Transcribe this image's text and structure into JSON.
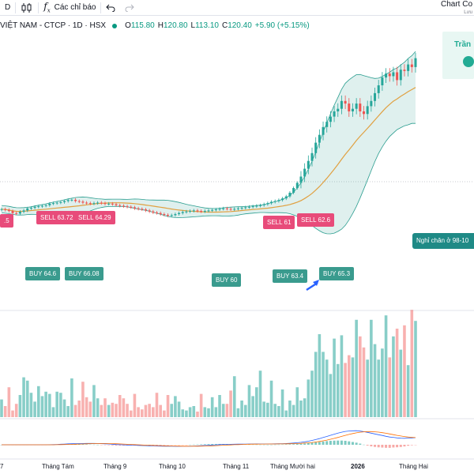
{
  "toolbar": {
    "timeframe_fragment": "D",
    "candles_icon": "candles-icon",
    "indicators_label": "Các chỉ báo",
    "undo_icon": "undo-icon",
    "redo_icon": "redo-icon"
  },
  "header_right": {
    "title": "Chart Co",
    "subtitle": "Lưu"
  },
  "legend": {
    "title": "VIỆT NAM - CTCP · 1D · HSX",
    "open_label": "O",
    "open": "115.80",
    "high_label": "H",
    "high": "120.80",
    "low_label": "L",
    "low": "113.10",
    "close_label": "C",
    "close": "120.40",
    "change": "+5.90 (+5.15%)"
  },
  "promo": {
    "text": "Trần"
  },
  "signals": [
    {
      "type": "sell",
      "text": "SELL 63.72"
    },
    {
      "type": "sell",
      "text": "SELL 64.29"
    },
    {
      "type": "sell",
      "text": "SELL 61"
    },
    {
      "type": "sell",
      "text": "SELL 62.6"
    },
    {
      "type": "sell",
      "text": ".5"
    },
    {
      "type": "buy",
      "text": "BUY 64.6"
    },
    {
      "type": "buy",
      "text": "BUY 66.08"
    },
    {
      "type": "buy",
      "text": "BUY 60"
    },
    {
      "type": "buy",
      "text": "BUY 63.4"
    },
    {
      "type": "buy",
      "text": "BUY 65.3"
    }
  ],
  "note": "Nghỉ chân ở 98-10",
  "x_axis": [
    "7",
    "Tháng Tám",
    "Tháng 9",
    "Tháng 10",
    "Tháng 11",
    "Tháng Mười hai",
    "2026",
    "Tháng Hai"
  ],
  "colors": {
    "up": "#26a69a",
    "down": "#ef5350",
    "sell": "#e84b7a",
    "buy": "#3a9b8e",
    "band": "#2a9d8f",
    "ma": "#e0a040"
  },
  "series": {
    "close": [
      62.5,
      62.2,
      61.8,
      61.0,
      60.8,
      61.5,
      62.0,
      62.8,
      63.0,
      63.4,
      63.6,
      63.8,
      64.0,
      64.6,
      64.8,
      65.0,
      65.2,
      65.6,
      66.0,
      66.1,
      65.6,
      65.4,
      65.0,
      64.8,
      64.6,
      64.8,
      65.0,
      64.8,
      64.5,
      64.6,
      64.4,
      64.0,
      63.8,
      63.6,
      63.4,
      63.2,
      62.8,
      62.6,
      62.4,
      62.0,
      61.6,
      61.2,
      61.0,
      60.6,
      60.3,
      60.0,
      60.2,
      60.6,
      61.0,
      61.4,
      61.6,
      61.8,
      62.0,
      61.8,
      61.6,
      61.8,
      62.0,
      62.2,
      62.4,
      62.6,
      62.8,
      62.6,
      62.4,
      62.6,
      62.8,
      63.0,
      63.2,
      63.4,
      63.6,
      63.8,
      64.0,
      64.4,
      64.8,
      65.3,
      65.6,
      66.0,
      66.6,
      67.4,
      68.8,
      70.6,
      72.6,
      75.0,
      78.0,
      81.0,
      84.0,
      88.0,
      91.0,
      94.0,
      96.0,
      98.0,
      100.0,
      101.0,
      104.0,
      103.0,
      100.0,
      101.0,
      103.0,
      100.0,
      99.0,
      102.0,
      104.0,
      107.0,
      110.0,
      113.0,
      114.5,
      113.5,
      115.0,
      112.0,
      116.0,
      115.5,
      118.0,
      117.0,
      120.4
    ],
    "volume": [
      0.16,
      0.1,
      0.27,
      0.06,
      0.12,
      0.2,
      0.36,
      0.33,
      0.22,
      0.14,
      0.28,
      0.19,
      0.23,
      0.21,
      0.09,
      0.23,
      0.22,
      0.16,
      0.1,
      0.35,
      0.11,
      0.15,
      0.32,
      0.18,
      0.14,
      0.29,
      0.17,
      0.11,
      0.17,
      0.11,
      0.13,
      0.12,
      0.2,
      0.17,
      0.12,
      0.06,
      0.21,
      0.09,
      0.07,
      0.11,
      0.12,
      0.09,
      0.22,
      0.11,
      0.06,
      0.2,
      0.12,
      0.19,
      0.14,
      0.07,
      0.06,
      0.09,
      0.1,
      0.05,
      0.21,
      0.09,
      0.08,
      0.18,
      0.09,
      0.2,
      0.12,
      0.12,
      0.24,
      0.37,
      0.08,
      0.15,
      0.11,
      0.29,
      0.19,
      0.27,
      0.42,
      0.14,
      0.13,
      0.33,
      0.12,
      0.1,
      0.25,
      0.06,
      0.15,
      0.11,
      0.27,
      0.15,
      0.17,
      0.34,
      0.42,
      0.59,
      0.75,
      0.59,
      0.52,
      0.39,
      0.71,
      0.48,
      0.74,
      0.49,
      0.56,
      0.54,
      0.88,
      0.73,
      0.63,
      0.52,
      0.88,
      0.66,
      0.52,
      0.62,
      0.92,
      0.54,
      0.73,
      0.8,
      0.61,
      0.83,
      0.47,
      0.97,
      0.87
    ]
  }
}
